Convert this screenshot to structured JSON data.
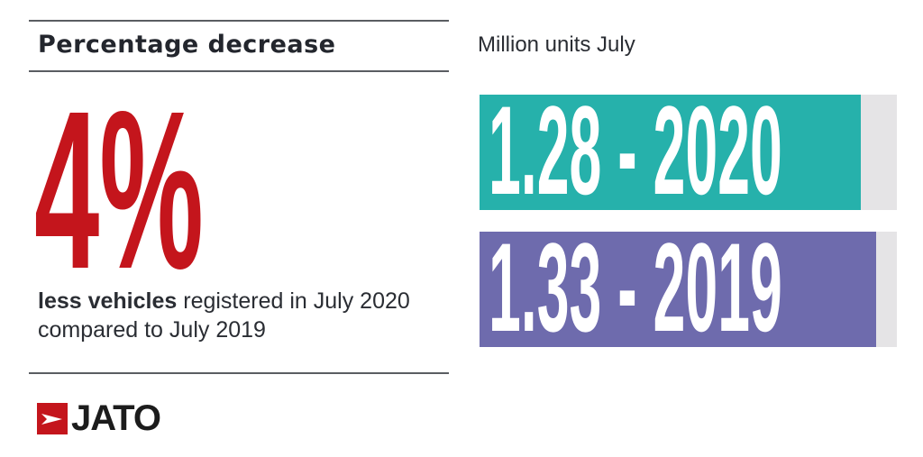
{
  "left_panel": {
    "title": "Percentage decrease",
    "big_value": "4%",
    "caption_bold": "less vehicles",
    "caption_rest": " registered in July 2020",
    "caption_line2": "compared to July 2019",
    "logo_text": "JATO"
  },
  "colors": {
    "accent_red": "#c4151c",
    "bar_2020": "#26b1ab",
    "bar_2019": "#6e6bad",
    "track": "#e5e4e6"
  },
  "chart_data": {
    "type": "bar",
    "orientation": "horizontal",
    "title": "Million units July",
    "xlim": [
      0,
      1.4
    ],
    "categories": [
      "2020",
      "2019"
    ],
    "values": [
      1.28,
      1.33
    ],
    "labels": [
      "1.28 - 2020",
      "1.33 - 2019"
    ]
  }
}
